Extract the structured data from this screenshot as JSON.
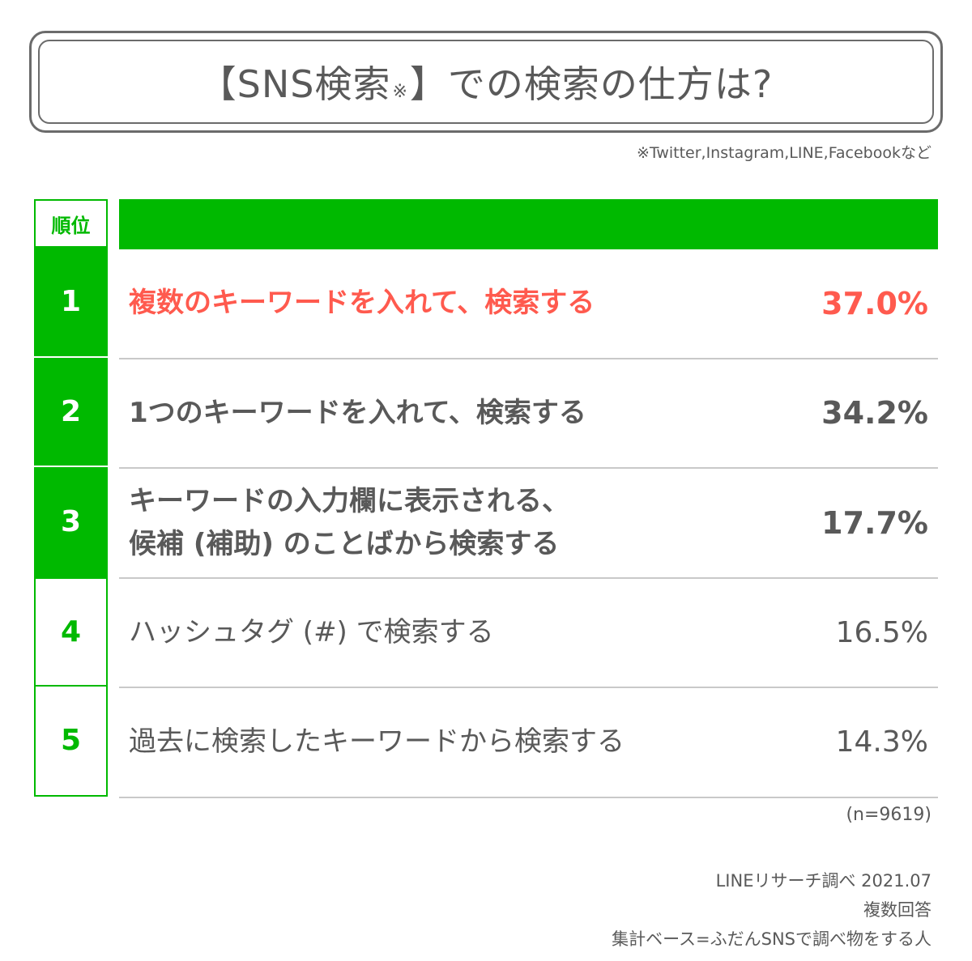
{
  "title": {
    "prefix": "【SNS検索",
    "mark": "※",
    "suffix": "】での検索の仕方は?"
  },
  "note": "※Twitter,Instagram,LINE,Facebookなど",
  "table": {
    "rank_header": "順位"
  },
  "chart_data": {
    "type": "table",
    "title": "【SNS検索※】での検索の仕方は?",
    "columns": [
      "順位",
      "",
      ""
    ],
    "rows": [
      {
        "rank": "1",
        "label_lines": [
          "複数のキーワードを入れて、検索する"
        ],
        "value": "37.0%",
        "percent": 37.0
      },
      {
        "rank": "2",
        "label_lines": [
          "1つのキーワードを入れて、検索する"
        ],
        "value": "34.2%",
        "percent": 34.2
      },
      {
        "rank": "3",
        "label_lines": [
          "キーワードの入力欄に表示される、",
          "候補 (補助) のことばから検索する"
        ],
        "value": "17.7%",
        "percent": 17.7
      },
      {
        "rank": "4",
        "label_lines": [
          "ハッシュタグ (#) で検索する"
        ],
        "value": "16.5%",
        "percent": 16.5
      },
      {
        "rank": "5",
        "label_lines": [
          "過去に検索したキーワードから検索する"
        ],
        "value": "14.3%",
        "percent": 14.3
      }
    ]
  },
  "colors": {
    "accent_green": "#00b900",
    "highlight_red": "#ff5a4e",
    "text_gray": "#595959"
  },
  "sample_size": "(n=9619)",
  "source": {
    "line1": "LINEリサーチ調べ 2021.07",
    "line2": "複数回答",
    "line3": "集計ベース=ふだんSNSで調べ物をする人"
  }
}
